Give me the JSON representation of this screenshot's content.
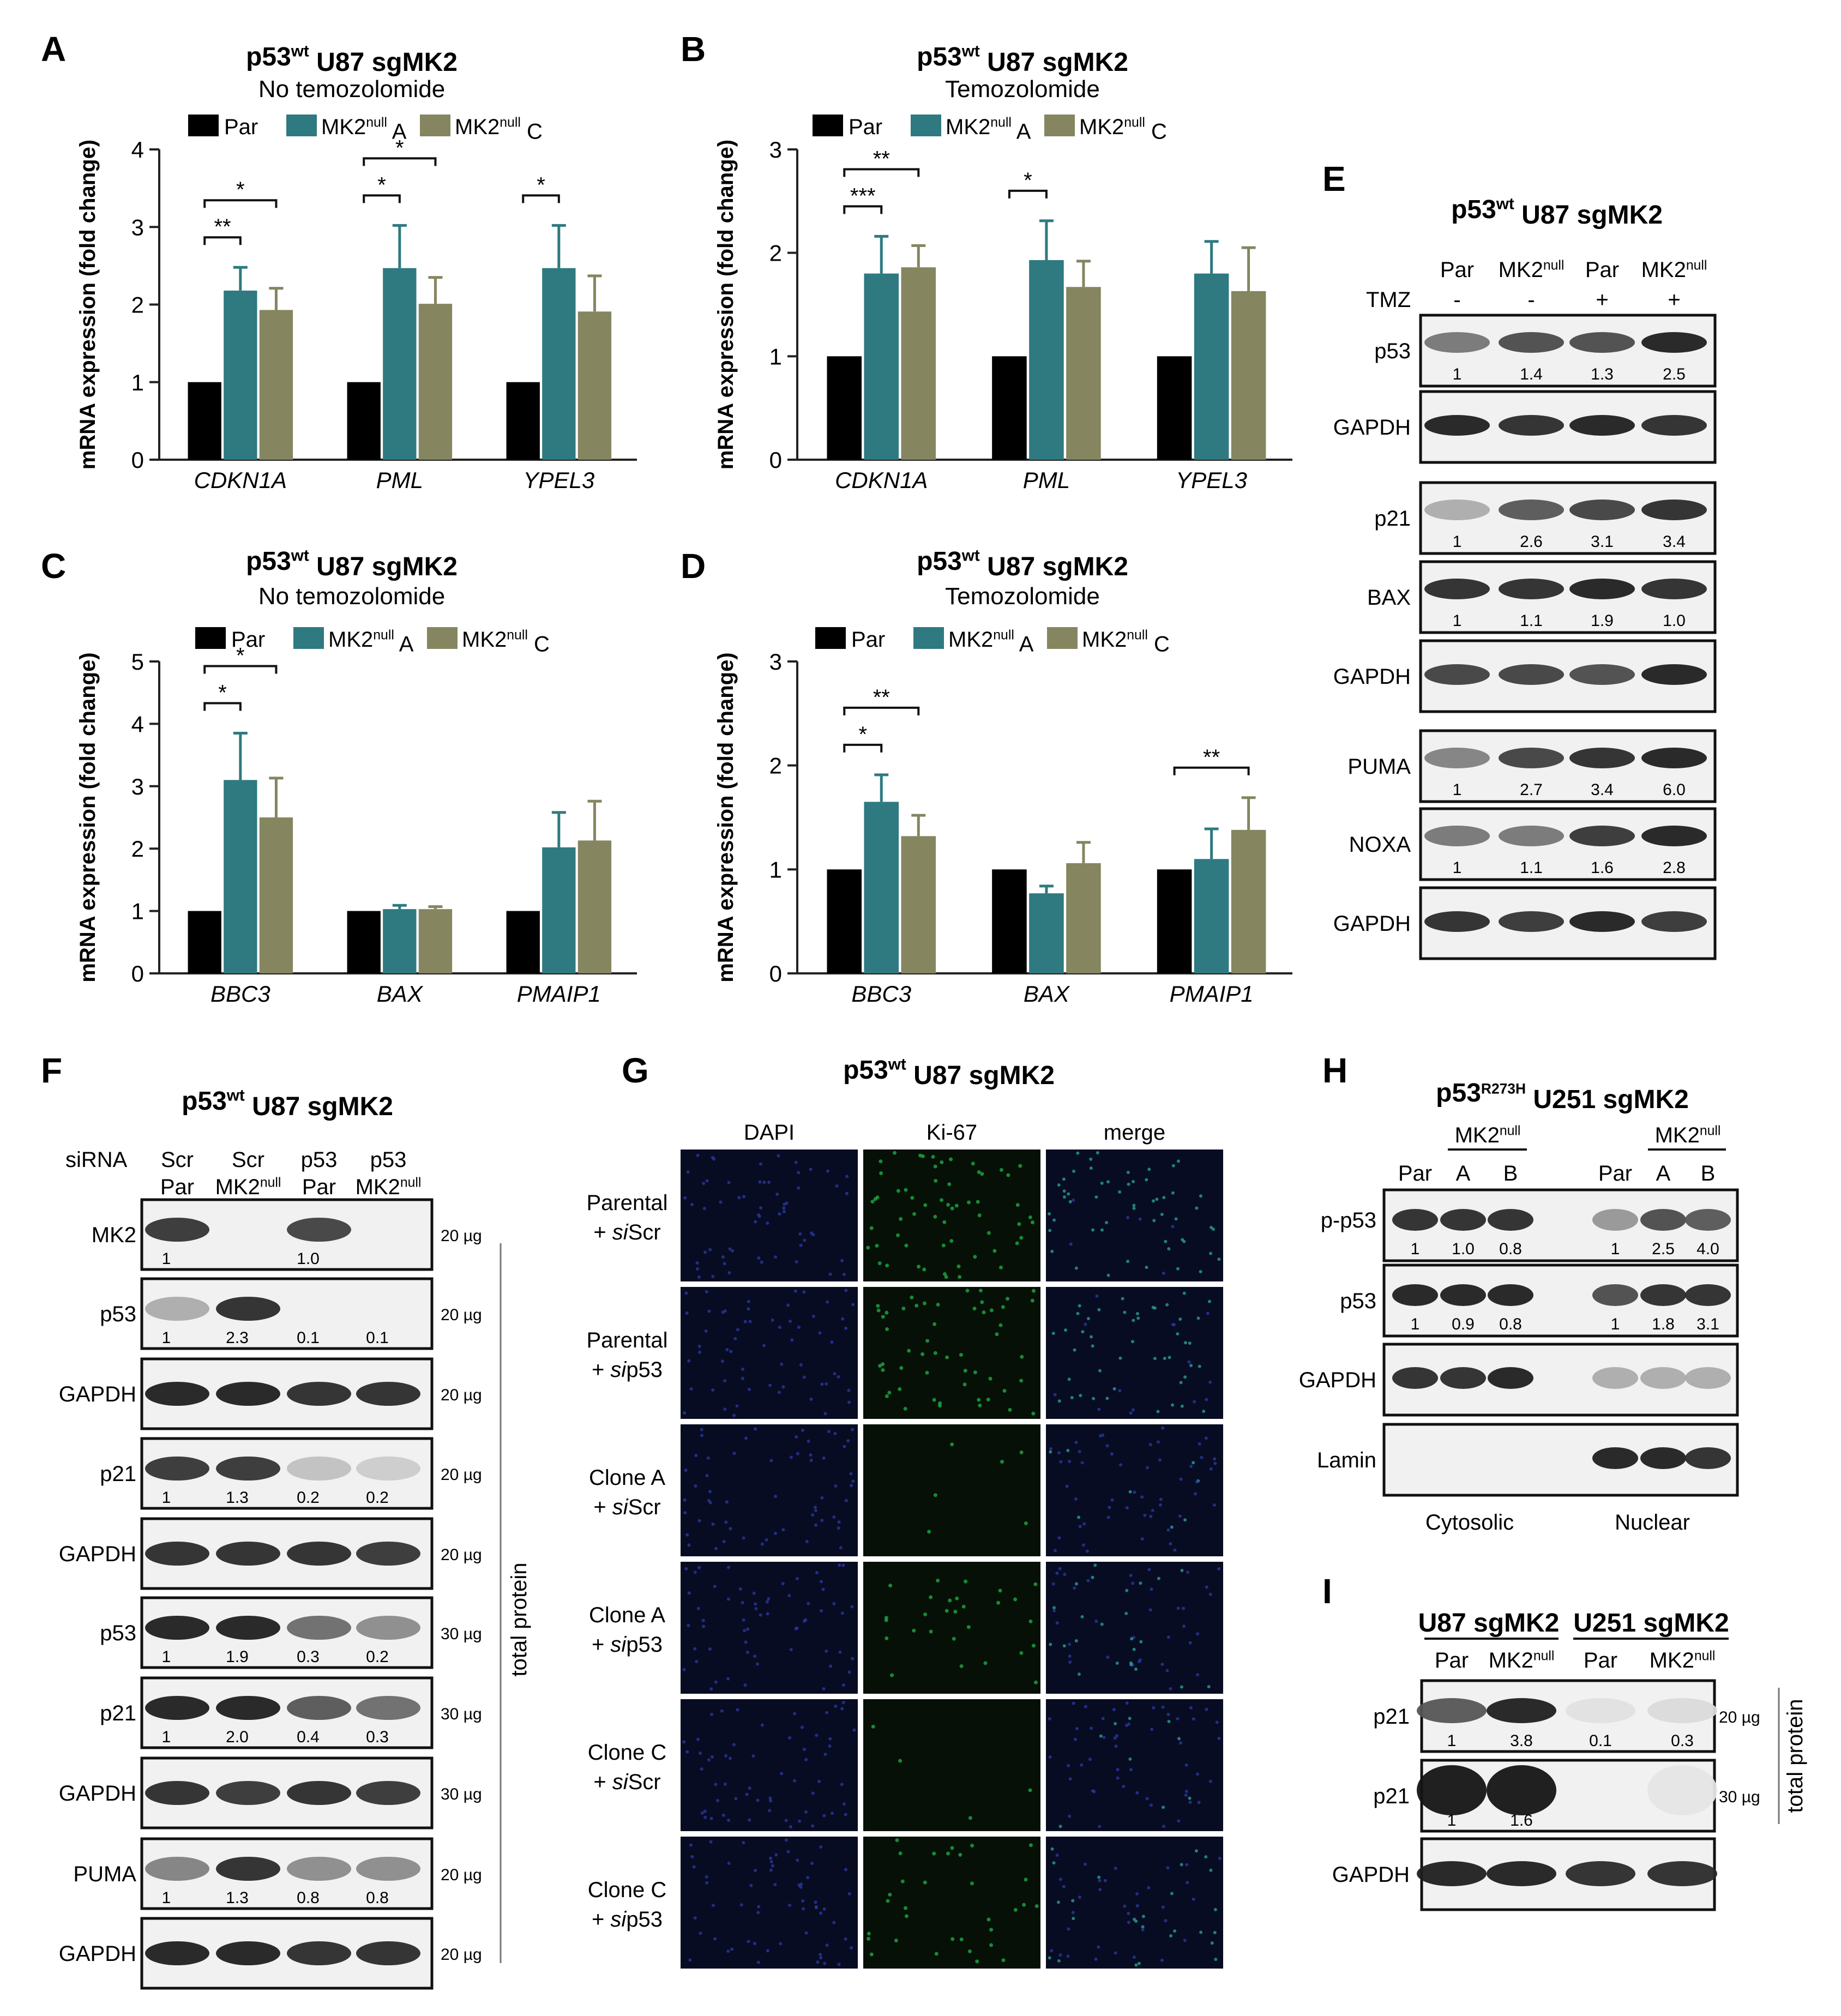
{
  "colors": {
    "par": "#000000",
    "mk2a": "#2e7a80",
    "mk2c": "#858560",
    "green": "#1db34a",
    "blue": "#2a3aa8"
  },
  "panels": {
    "A": {
      "letter": "A",
      "title_pre": "p53",
      "title_sup": "wt",
      "title_post": " U87 sgMK2",
      "subtitle": "No temozolomide"
    },
    "B": {
      "letter": "B",
      "title_pre": "p53",
      "title_sup": "wt",
      "title_post": " U87 sgMK2",
      "subtitle": "Temozolomide"
    },
    "C": {
      "letter": "C",
      "title_pre": "p53",
      "title_sup": "wt",
      "title_post": " U87 sgMK2",
      "subtitle": "No temozolomide"
    },
    "D": {
      "letter": "D",
      "title_pre": "p53",
      "title_sup": "wt",
      "title_post": " U87 sgMK2",
      "subtitle": "Temozolomide"
    },
    "E": {
      "letter": "E",
      "title_pre": "p53",
      "title_sup": "wt",
      "title_post": " U87 sgMK2"
    },
    "F": {
      "letter": "F",
      "title_pre": "p53",
      "title_sup": "wt",
      "title_post": " U87 sgMK2"
    },
    "G": {
      "letter": "G",
      "title_pre": "p53",
      "title_sup": "wt",
      "title_post": " U87 sgMK2"
    },
    "H": {
      "letter": "H",
      "title_pre": "p53",
      "title_sup": "R273H",
      "title_post": " U251 sgMK2"
    },
    "I": {
      "letter": "I"
    }
  },
  "legend": {
    "par": "Par",
    "mk2a_pre": "MK2",
    "mk2a_sup": "null",
    "mk2a_post": " A",
    "mk2c_pre": "MK2",
    "mk2c_sup": "null",
    "mk2c_post": " C"
  },
  "ylabel": "mRNA expression (fold change)",
  "chart_data": [
    {
      "type": "bar",
      "panel": "A",
      "categories": [
        "CDKN1A",
        "PML",
        "YPEL3"
      ],
      "ylim": [
        0,
        4
      ],
      "yticks": [
        "0",
        "1",
        "2",
        "3",
        "4"
      ],
      "series": [
        {
          "name": "Par",
          "values": [
            1,
            1,
            1
          ],
          "err": [
            0,
            0,
            0
          ]
        },
        {
          "name": "MK2null A",
          "values": [
            2.18,
            2.47,
            2.47
          ],
          "err": [
            0.3,
            0.55,
            0.55
          ]
        },
        {
          "name": "MK2null C",
          "values": [
            1.93,
            2.01,
            1.91
          ],
          "err": [
            0.28,
            0.34,
            0.46
          ]
        }
      ],
      "sig": [
        {
          "cat": 0,
          "to": 1,
          "label": "**"
        },
        {
          "cat": 0,
          "to": 2,
          "label": "*"
        },
        {
          "cat": 1,
          "to": 1,
          "label": "*"
        },
        {
          "cat": 1,
          "to": 2,
          "label": "*"
        },
        {
          "cat": 2,
          "to": 1,
          "label": "*"
        }
      ]
    },
    {
      "type": "bar",
      "panel": "B",
      "categories": [
        "CDKN1A",
        "PML",
        "YPEL3"
      ],
      "ylim": [
        0,
        3
      ],
      "yticks": [
        "0",
        "1",
        "2",
        "3"
      ],
      "series": [
        {
          "name": "Par",
          "values": [
            1,
            1,
            1
          ],
          "err": [
            0,
            0,
            0
          ]
        },
        {
          "name": "MK2null A",
          "values": [
            1.8,
            1.93,
            1.8
          ],
          "err": [
            0.36,
            0.38,
            0.31
          ]
        },
        {
          "name": "MK2null C",
          "values": [
            1.86,
            1.67,
            1.63
          ],
          "err": [
            0.21,
            0.25,
            0.42
          ]
        }
      ],
      "sig": [
        {
          "cat": 0,
          "to": 1,
          "label": "***"
        },
        {
          "cat": 0,
          "to": 2,
          "label": "**"
        },
        {
          "cat": 1,
          "to": 1,
          "label": "*"
        }
      ]
    },
    {
      "type": "bar",
      "panel": "C",
      "categories": [
        "BBC3",
        "BAX",
        "PMAIP1"
      ],
      "ylim": [
        0,
        5
      ],
      "yticks": [
        "0",
        "1",
        "2",
        "3",
        "4",
        "5"
      ],
      "series": [
        {
          "name": "Par",
          "values": [
            1,
            1,
            1
          ],
          "err": [
            0,
            0,
            0
          ]
        },
        {
          "name": "MK2null A",
          "values": [
            3.1,
            1.03,
            2.02
          ],
          "err": [
            0.75,
            0.06,
            0.56
          ]
        },
        {
          "name": "MK2null C",
          "values": [
            2.5,
            1.03,
            2.13
          ],
          "err": [
            0.63,
            0.04,
            0.63
          ]
        }
      ],
      "sig": [
        {
          "cat": 0,
          "to": 1,
          "label": "*"
        },
        {
          "cat": 0,
          "to": 2,
          "label": "*"
        }
      ]
    },
    {
      "type": "bar",
      "panel": "D",
      "categories": [
        "BBC3",
        "BAX",
        "PMAIP1"
      ],
      "ylim": [
        0,
        3
      ],
      "yticks": [
        "0",
        "1",
        "2",
        "3"
      ],
      "series": [
        {
          "name": "Par",
          "values": [
            1,
            1,
            1
          ],
          "err": [
            0,
            0,
            0
          ]
        },
        {
          "name": "MK2null A",
          "values": [
            1.65,
            0.77,
            1.1
          ],
          "err": [
            0.26,
            0.07,
            0.29
          ]
        },
        {
          "name": "MK2null C",
          "values": [
            1.32,
            1.06,
            1.38
          ],
          "err": [
            0.2,
            0.2,
            0.31
          ]
        }
      ],
      "sig": [
        {
          "cat": 0,
          "to": 1,
          "label": "*"
        },
        {
          "cat": 0,
          "to": 2,
          "label": "**"
        },
        {
          "cat": 2,
          "to": 2,
          "label": "**"
        }
      ]
    }
  ],
  "blotE": {
    "col1": "Par",
    "col2_pre": "MK2",
    "col2_sup": "null",
    "col3": "Par",
    "col4_pre": "MK2",
    "col4_sup": "null",
    "tmz_label": "TMZ",
    "tmz": [
      "-",
      "-",
      "+",
      "+"
    ],
    "rows": [
      {
        "label": "p53",
        "q": [
          "1",
          "1.4",
          "1.3",
          "2.5"
        ],
        "int": [
          0.55,
          0.75,
          0.75,
          0.95
        ]
      },
      {
        "label": "GAPDH",
        "q": [],
        "int": [
          0.95,
          0.9,
          0.95,
          0.9
        ]
      },
      {
        "label": "p21",
        "q": [
          "1",
          "2.6",
          "3.1",
          "3.4"
        ],
        "int": [
          0.3,
          0.7,
          0.8,
          0.9
        ]
      },
      {
        "label": "BAX",
        "q": [
          "1",
          "1.1",
          "1.9",
          "1.0"
        ],
        "int": [
          0.9,
          0.9,
          0.95,
          0.9
        ]
      },
      {
        "label": "GAPDH",
        "q": [],
        "int": [
          0.8,
          0.8,
          0.75,
          0.95
        ]
      },
      {
        "label": "PUMA",
        "q": [
          "1",
          "2.7",
          "3.4",
          "6.0"
        ],
        "int": [
          0.5,
          0.8,
          0.9,
          0.95
        ]
      },
      {
        "label": "NOXA",
        "q": [
          "1",
          "1.1",
          "1.6",
          "2.8"
        ],
        "int": [
          0.55,
          0.55,
          0.85,
          0.95
        ]
      },
      {
        "label": "GAPDH",
        "q": [],
        "int": [
          0.9,
          0.85,
          0.95,
          0.85
        ]
      }
    ]
  },
  "blotF": {
    "siRNA_label": "siRNA",
    "cols": [
      {
        "top": "Scr",
        "bot_pre": "Par",
        "bot_sup": ""
      },
      {
        "top": "Scr",
        "bot_pre": "MK2",
        "bot_sup": "null"
      },
      {
        "top": "p53",
        "bot_pre": "Par",
        "bot_sup": ""
      },
      {
        "top": "p53",
        "bot_pre": "MK2",
        "bot_sup": "null"
      }
    ],
    "side_label": "total protein",
    "rows": [
      {
        "label": "MK2",
        "q": [
          "1",
          "",
          "1.0",
          ""
        ],
        "amt": "20 µg",
        "int": [
          0.85,
          0,
          0.8,
          0
        ]
      },
      {
        "label": "p53",
        "q": [
          "1",
          "2.3",
          "0.1",
          "0.1"
        ],
        "amt": "20 µg",
        "int": [
          0.3,
          0.9,
          0,
          0
        ]
      },
      {
        "label": "GAPDH",
        "q": [],
        "amt": "20 µg",
        "int": [
          0.95,
          0.95,
          0.9,
          0.9
        ]
      },
      {
        "label": "p21",
        "q": [
          "1",
          "1.3",
          "0.2",
          "0.2"
        ],
        "amt": "20 µg",
        "int": [
          0.85,
          0.85,
          0.2,
          0.15
        ]
      },
      {
        "label": "GAPDH",
        "q": [],
        "amt": "20 µg",
        "int": [
          0.9,
          0.9,
          0.9,
          0.85
        ]
      },
      {
        "label": "p53",
        "q": [
          "1",
          "1.9",
          "0.3",
          "0.2"
        ],
        "amt": "30 µg",
        "int": [
          0.95,
          0.95,
          0.6,
          0.45
        ]
      },
      {
        "label": "p21",
        "q": [
          "1",
          "2.0",
          "0.4",
          "0.3"
        ],
        "amt": "30 µg",
        "int": [
          0.95,
          0.95,
          0.7,
          0.6
        ]
      },
      {
        "label": "GAPDH",
        "q": [],
        "amt": "30 µg",
        "int": [
          0.9,
          0.85,
          0.9,
          0.85
        ]
      },
      {
        "label": "PUMA",
        "q": [
          "1",
          "1.3",
          "0.8",
          "0.8"
        ],
        "amt": "20 µg",
        "int": [
          0.5,
          0.9,
          0.45,
          0.45
        ]
      },
      {
        "label": "GAPDH",
        "q": [],
        "amt": "20 µg",
        "int": [
          0.95,
          0.95,
          0.9,
          0.9
        ]
      }
    ]
  },
  "panelG": {
    "cols": [
      "DAPI",
      "Ki-67",
      "merge"
    ],
    "rows": [
      {
        "l1": "Parental",
        "l2_pre": "+ ",
        "l2_it": "si",
        "l2_post": "Scr",
        "green": 0.85
      },
      {
        "l1": "Parental",
        "l2_pre": "+ ",
        "l2_it": "si",
        "l2_post": "p53",
        "green": 0.75
      },
      {
        "l1": "Clone A",
        "l2_pre": "+ ",
        "l2_it": "si",
        "l2_post": "Scr",
        "green": 0.08
      },
      {
        "l1": "Clone A",
        "l2_pre": "+ ",
        "l2_it": "si",
        "l2_post": "p53",
        "green": 0.4
      },
      {
        "l1": "Clone C",
        "l2_pre": "+ ",
        "l2_it": "si",
        "l2_post": "Scr",
        "green": 0.05
      },
      {
        "l1": "Clone C",
        "l2_pre": "+ ",
        "l2_it": "si",
        "l2_post": "p53",
        "green": 0.45
      }
    ]
  },
  "blotH": {
    "mk2_pre": "MK2",
    "mk2_sup": "null",
    "cols": [
      "Par",
      "A",
      "B",
      "Par",
      "A",
      "B"
    ],
    "frac1": "Cytosolic",
    "frac2": "Nuclear",
    "rows": [
      {
        "label": "p-p53",
        "q": [
          "1",
          "1.0",
          "0.8",
          "1",
          "2.5",
          "4.0"
        ],
        "int": [
          0.9,
          0.9,
          0.9,
          0.4,
          0.75,
          0.7
        ]
      },
      {
        "label": "p53",
        "q": [
          "1",
          "0.9",
          "0.8",
          "1",
          "1.8",
          "3.1"
        ],
        "int": [
          0.95,
          0.95,
          0.95,
          0.75,
          0.9,
          0.9
        ]
      },
      {
        "label": "GAPDH",
        "q": [],
        "int": [
          0.9,
          0.9,
          0.95,
          0.3,
          0.3,
          0.3
        ]
      },
      {
        "label": "Lamin",
        "q": [],
        "int": [
          0,
          0,
          0,
          0.95,
          0.95,
          0.9
        ]
      }
    ]
  },
  "blotI": {
    "group1": "U87 sgMK2",
    "group2": "U251 sgMK2",
    "cols": [
      {
        "pre": "Par",
        "sup": ""
      },
      {
        "pre": "MK2",
        "sup": "null"
      },
      {
        "pre": "Par",
        "sup": ""
      },
      {
        "pre": "MK2",
        "sup": "null"
      }
    ],
    "side_label": "total protein",
    "rows": [
      {
        "label": "p21",
        "q": [
          "1",
          "3.8",
          "0.1",
          "0.3"
        ],
        "amt": "20 µg",
        "int": [
          0.7,
          0.95,
          0.05,
          0.08
        ]
      },
      {
        "label": "p21",
        "q": [
          "1",
          "1.6",
          "",
          ""
        ],
        "amt": "30 µg",
        "int": [
          1,
          1,
          0,
          0.03
        ]
      },
      {
        "label": "GAPDH",
        "q": [],
        "amt": "",
        "int": [
          0.95,
          0.95,
          0.9,
          0.9
        ]
      }
    ]
  }
}
